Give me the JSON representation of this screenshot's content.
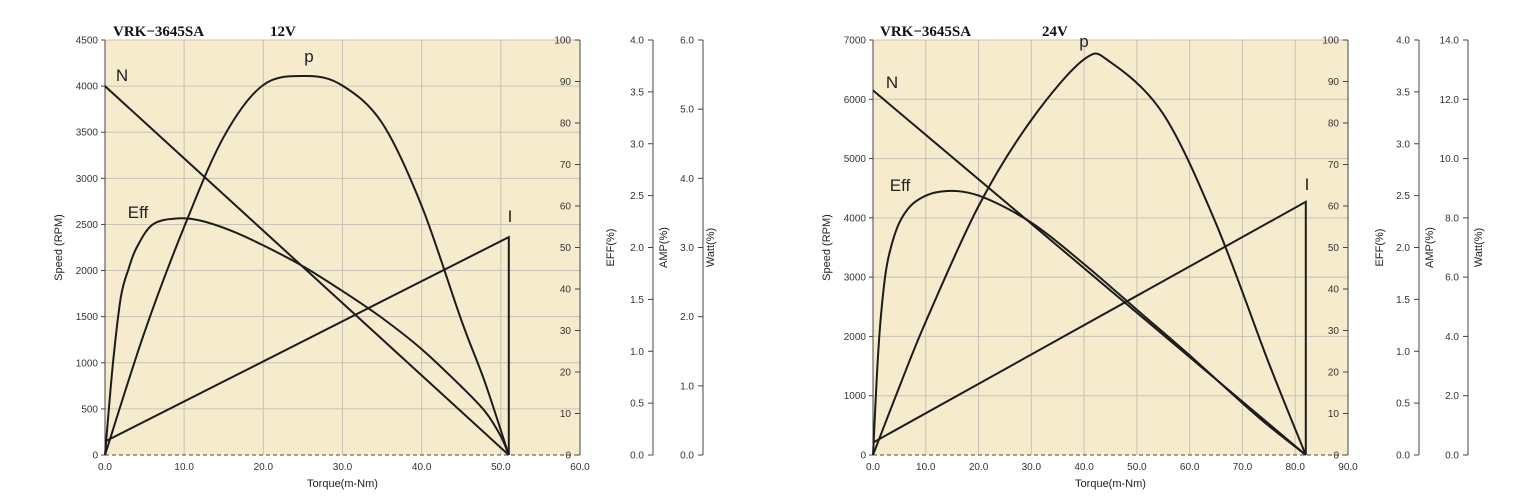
{
  "style": {
    "plot_bg": "#f7ebcd",
    "grid": "#c8c2b4",
    "curve": "#1c1c1c",
    "axis": "#444444"
  },
  "chart_data": [
    {
      "type": "line",
      "title": "VRK−3645SA",
      "voltage": "12V",
      "xlabel": "Torque(m-Nm)",
      "ylabel": "Speed (RPM)",
      "xlim": [
        0,
        60
      ],
      "xticks": [
        "0.0",
        "10.0",
        "20.0",
        "30.0",
        "40.0",
        "50.0",
        "60.0"
      ],
      "ylim": [
        0,
        4500
      ],
      "yticks": [
        "0",
        "500",
        "1000",
        "1500",
        "2000",
        "2500",
        "3000",
        "3500",
        "4000",
        "4500"
      ],
      "secondary_axes": [
        {
          "label": "EFF(%)",
          "range": [
            0,
            100
          ],
          "ticks": [
            "0",
            "10",
            "20",
            "30",
            "40",
            "50",
            "60",
            "70",
            "80",
            "90",
            "100"
          ]
        },
        {
          "label": "AMP(%)",
          "range": [
            0,
            4.0
          ],
          "ticks": [
            "0.0",
            "0.5",
            "1.0",
            "1.5",
            "2.0",
            "2.5",
            "3.0",
            "3.5",
            "4.0"
          ]
        },
        {
          "label": "Watt(%)",
          "range": [
            0,
            6.0
          ],
          "ticks": [
            "0.0",
            "1.0",
            "2.0",
            "3.0",
            "4.0",
            "5.0",
            "6.0"
          ]
        }
      ],
      "grid": true,
      "series": [
        {
          "name": "N",
          "axis": "Speed (RPM)",
          "x": [
            0,
            51
          ],
          "y": [
            4000,
            0
          ]
        },
        {
          "name": "I",
          "axis": "AMP(%)",
          "x": [
            0,
            51,
            51
          ],
          "y": [
            0.13,
            2.1,
            0.0
          ]
        },
        {
          "name": "p",
          "axis": "Watt(%)",
          "x": [
            0,
            5,
            10,
            15,
            20,
            25.5,
            30,
            35,
            40,
            45,
            48,
            51
          ],
          "y": [
            0,
            1.78,
            3.3,
            4.6,
            5.35,
            5.48,
            5.34,
            4.8,
            3.6,
            1.95,
            1.05,
            0
          ]
        },
        {
          "name": "Eff",
          "axis": "EFF(%)",
          "x": [
            0,
            1,
            2,
            3,
            4,
            6,
            9,
            12,
            16,
            20,
            25,
            30,
            35,
            40,
            45,
            48,
            50,
            51
          ],
          "y": [
            0,
            22,
            38,
            45,
            50,
            55.5,
            57,
            56.5,
            54,
            50.5,
            45.5,
            39.5,
            33,
            25.5,
            16.5,
            10.5,
            4.5,
            0
          ]
        }
      ]
    },
    {
      "type": "line",
      "title": "VRK−3645SA",
      "voltage": "24V",
      "xlabel": "Torque(m-Nm)",
      "ylabel": "Speed (RPM)",
      "xlim": [
        0,
        90
      ],
      "xticks": [
        "0.0",
        "10.0",
        "20.0",
        "30.0",
        "40.0",
        "50.0",
        "60.0",
        "70.0",
        "80.0",
        "90.0"
      ],
      "ylim": [
        0,
        7000
      ],
      "yticks": [
        "0",
        "1000",
        "2000",
        "3000",
        "4000",
        "5000",
        "6000",
        "7000"
      ],
      "secondary_axes": [
        {
          "label": "EFF(%)",
          "range": [
            0,
            100
          ],
          "ticks": [
            "0",
            "10",
            "20",
            "30",
            "40",
            "50",
            "60",
            "70",
            "80",
            "90",
            "100"
          ]
        },
        {
          "label": "AMP(%)",
          "range": [
            0,
            4.0
          ],
          "ticks": [
            "0.0",
            "0.5",
            "1.0",
            "1.5",
            "2.0",
            "2.5",
            "3.0",
            "3.5",
            "4.0"
          ]
        },
        {
          "label": "Watt(%)",
          "range": [
            0,
            14.0
          ],
          "ticks": [
            "0.0",
            "2.0",
            "4.0",
            "6.0",
            "8.0",
            "10.0",
            "12.0",
            "14.0"
          ]
        }
      ],
      "grid": true,
      "series": [
        {
          "name": "N",
          "axis": "Speed (RPM)",
          "x": [
            0,
            82
          ],
          "y": [
            6150,
            0
          ]
        },
        {
          "name": "I",
          "axis": "AMP(%)",
          "x": [
            0,
            82,
            82
          ],
          "y": [
            0.12,
            2.44,
            0.0
          ]
        },
        {
          "name": "p",
          "axis": "Watt(%)",
          "x": [
            0,
            5,
            10,
            20,
            30,
            40,
            45,
            55,
            65,
            75,
            82
          ],
          "y": [
            0,
            2.3,
            4.5,
            8.4,
            11.3,
            13.35,
            13.25,
            11.5,
            7.8,
            3.1,
            0
          ]
        },
        {
          "name": "Eff",
          "axis": "EFF(%)",
          "x": [
            0,
            1,
            2,
            3,
            5,
            8,
            13,
            20,
            30,
            40,
            50,
            60,
            70,
            75,
            80,
            82
          ],
          "y": [
            0,
            25,
            40,
            48,
            56,
            61,
            63.5,
            62.5,
            56,
            46,
            35,
            24,
            12.5,
            7,
            2,
            0
          ]
        }
      ]
    }
  ]
}
